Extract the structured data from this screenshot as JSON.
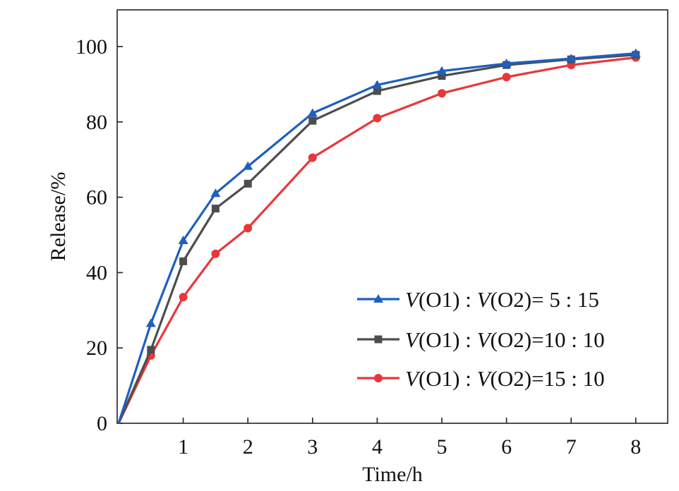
{
  "chart_data": {
    "type": "line",
    "title": "",
    "xlabel": "Time/h",
    "ylabel": "Release/%",
    "xlim": [
      0,
      8.5
    ],
    "ylim": [
      0,
      110
    ],
    "x_ticks": [
      1,
      2,
      3,
      4,
      5,
      6,
      7,
      8
    ],
    "y_ticks": [
      0,
      20,
      40,
      60,
      80,
      100
    ],
    "grid": false,
    "legend_position": "bottom-right",
    "series": [
      {
        "name": "V(O1) : V(O2)= 5 : 15",
        "legend": {
          "v1": "V",
          "o1": "(O1) : ",
          "v2": "V",
          "rest": "(O2)= 5 : 15"
        },
        "color": "#1f5fbf",
        "marker": "triangle",
        "x": [
          0,
          0.5,
          1,
          1.5,
          2,
          3,
          4,
          5,
          6,
          7,
          8
        ],
        "values": [
          0,
          26.5,
          48.5,
          61,
          68.2,
          82.3,
          89.8,
          93.5,
          95.5,
          96.8,
          98.2
        ]
      },
      {
        "name": "V(O1) : V(O2)=10 : 10",
        "legend": {
          "v1": "V",
          "o1": "(O1) : ",
          "v2": "V",
          "rest": "(O2)=10 : 10"
        },
        "color": "#4d4d4d",
        "marker": "square",
        "x": [
          0,
          0.5,
          1,
          1.5,
          2,
          3,
          4,
          5,
          6,
          7,
          8
        ],
        "values": [
          0,
          19.5,
          43,
          57,
          63.6,
          80.3,
          88.2,
          92.2,
          95.1,
          96.6,
          97.8
        ]
      },
      {
        "name": "V(O1) : V(O2)=15 : 10",
        "legend": {
          "v1": "V",
          "o1": "(O1) : ",
          "v2": "V",
          "rest": "(O2)=15 : 10"
        },
        "color": "#e8373a",
        "marker": "circle",
        "x": [
          0,
          0.5,
          1,
          1.5,
          2,
          3,
          4,
          5,
          6,
          7,
          8
        ],
        "values": [
          0,
          18,
          33.5,
          45,
          51.8,
          70.5,
          81,
          87.6,
          91.9,
          95.1,
          97.1
        ]
      }
    ]
  }
}
